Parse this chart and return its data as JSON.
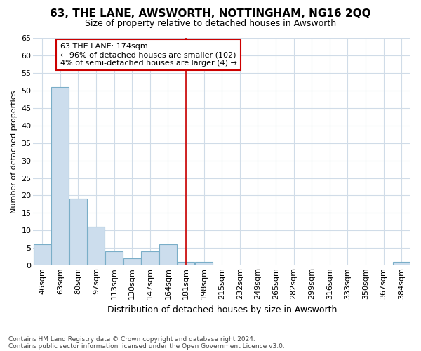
{
  "title": "63, THE LANE, AWSWORTH, NOTTINGHAM, NG16 2QQ",
  "subtitle": "Size of property relative to detached houses in Awsworth",
  "xlabel": "Distribution of detached houses by size in Awsworth",
  "ylabel": "Number of detached properties",
  "categories": [
    "46sqm",
    "63sqm",
    "80sqm",
    "97sqm",
    "113sqm",
    "130sqm",
    "147sqm",
    "164sqm",
    "181sqm",
    "198sqm",
    "215sqm",
    "232sqm",
    "249sqm",
    "265sqm",
    "282sqm",
    "299sqm",
    "316sqm",
    "333sqm",
    "350sqm",
    "367sqm",
    "384sqm"
  ],
  "values": [
    6,
    51,
    19,
    11,
    4,
    2,
    4,
    6,
    1,
    1,
    0,
    0,
    0,
    0,
    0,
    0,
    0,
    0,
    0,
    0,
    1
  ],
  "bar_color": "#ccdded",
  "bar_edge_color": "#7aaec8",
  "vline_index": 8,
  "vline_color": "#cc0000",
  "annotation_box_color": "#cc0000",
  "annotation_title": "63 THE LANE: 174sqm",
  "annotation_line1": "← 96% of detached houses are smaller (102)",
  "annotation_line2": "4% of semi-detached houses are larger (4) →",
  "ylim": [
    0,
    65
  ],
  "yticks": [
    0,
    5,
    10,
    15,
    20,
    25,
    30,
    35,
    40,
    45,
    50,
    55,
    60,
    65
  ],
  "bg_color": "#ffffff",
  "fig_bg_color": "#ffffff",
  "grid_color": "#d0dce8",
  "footer_line1": "Contains HM Land Registry data © Crown copyright and database right 2024.",
  "footer_line2": "Contains public sector information licensed under the Open Government Licence v3.0.",
  "title_fontsize": 11,
  "subtitle_fontsize": 9,
  "ylabel_fontsize": 8,
  "xlabel_fontsize": 9,
  "tick_fontsize": 8,
  "footer_fontsize": 6.5,
  "annotation_fontsize": 8
}
